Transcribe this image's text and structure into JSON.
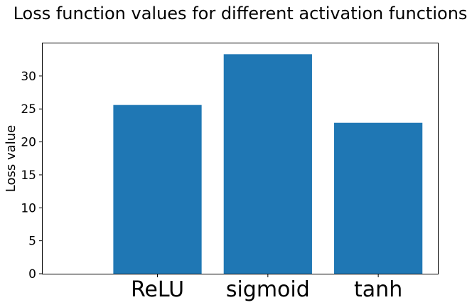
{
  "chart_data": {
    "type": "bar",
    "title": "Loss function values for different activation functions",
    "xlabel": "",
    "ylabel": "Loss value",
    "categories": [
      "ReLU",
      "sigmoid",
      "tanh"
    ],
    "values": [
      25.6,
      33.3,
      22.9
    ],
    "ylim": [
      0,
      34.95
    ],
    "yticks": [
      0,
      5,
      10,
      15,
      20,
      25,
      30
    ],
    "bar_color": "#1f77b4",
    "grid": false,
    "legend": "none"
  }
}
